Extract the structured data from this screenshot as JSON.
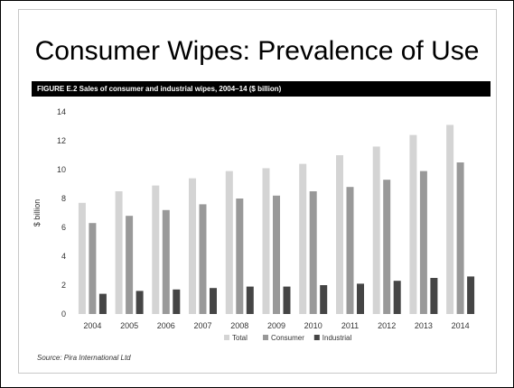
{
  "slide": {
    "title": "Consumer Wipes: Prevalence of Use",
    "figure_caption": "FIGURE E.2 Sales of consumer and industrial wipes, 2004–14 ($ billion)",
    "source": "Source: Pira International Ltd"
  },
  "colors": {
    "total": "#d4d4d4",
    "consumer": "#999999",
    "industrial": "#454545"
  },
  "chart_data": {
    "type": "bar",
    "title": "FIGURE E.2 Sales of consumer and industrial wipes, 2004–14 ($ billion)",
    "xlabel": "",
    "ylabel": "$ billion",
    "ylim": [
      0,
      14
    ],
    "yticks": [
      "0",
      "2",
      "4",
      "6",
      "8",
      "10",
      "12",
      "14"
    ],
    "grid": false,
    "legend_position": "bottom",
    "categories": [
      "2004",
      "2005",
      "2006",
      "2007",
      "2008",
      "2009",
      "2010",
      "2011",
      "2012",
      "2013",
      "2014"
    ],
    "series": [
      {
        "name": "Total",
        "values": [
          7.7,
          8.5,
          8.9,
          9.4,
          9.9,
          10.1,
          10.4,
          11.0,
          11.6,
          12.4,
          13.1
        ]
      },
      {
        "name": "Consumer",
        "values": [
          6.3,
          6.8,
          7.2,
          7.6,
          8.0,
          8.2,
          8.5,
          8.8,
          9.3,
          9.9,
          10.5
        ]
      },
      {
        "name": "Industrial",
        "values": [
          1.4,
          1.6,
          1.7,
          1.8,
          1.9,
          1.9,
          2.0,
          2.1,
          2.3,
          2.5,
          2.6
        ]
      }
    ]
  }
}
